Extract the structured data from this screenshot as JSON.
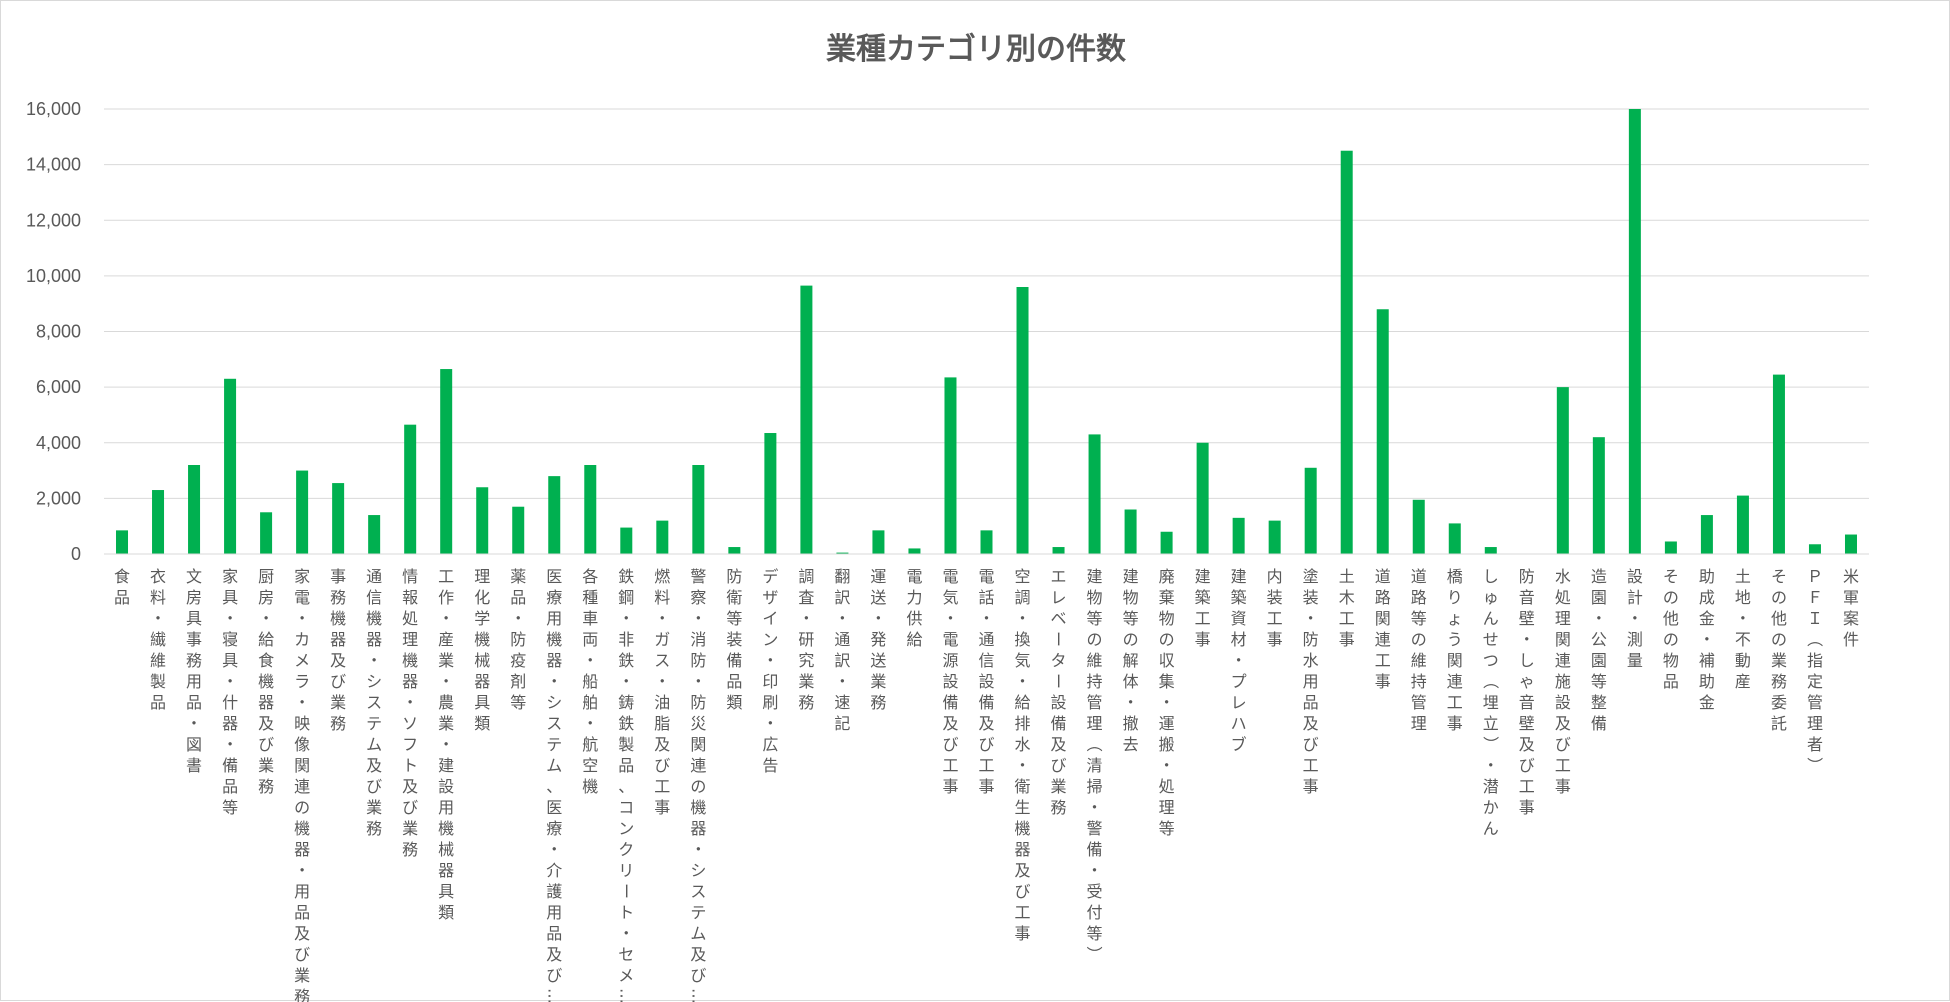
{
  "chart_data": {
    "type": "bar",
    "title": "業種カテゴリ別の件数",
    "xlabel": "",
    "ylabel": "",
    "ylim": [
      0,
      16000
    ],
    "y_ticks": [
      0,
      2000,
      4000,
      6000,
      8000,
      10000,
      12000,
      14000,
      16000
    ],
    "y_tick_labels": [
      "0",
      "2,000",
      "4,000",
      "6,000",
      "8,000",
      "10,000",
      "12,000",
      "14,000",
      "16,000"
    ],
    "grid": true,
    "legend": "none",
    "bar_color": "#00b050",
    "categories": [
      "食品",
      "衣料・繊維製品",
      "文房具事務用品・図書",
      "家具・寝具・什器・備品等",
      "厨房・給食機器及び業務",
      "家電・カメラ・映像関連の機器・用品及び業務",
      "事務機器及び業務",
      "通信機器・システム及び業務",
      "情報処理機器・ソフト及び業務",
      "工作・産業・農業・建設用機械器具類",
      "理化学機械器具類",
      "薬品・防疫剤等",
      "医療用機器・システム、医療・介護用品及び…",
      "各種車両・船舶・航空機",
      "鉄鋼・非鉄・鋳鉄製品、コンクリート・セメ…",
      "燃料・ガス・油脂及び工事",
      "警察・消防・防災関連の機器・システム及び…",
      "防衛等装備品類",
      "デザイン・印刷・広告",
      "調査・研究業務",
      "翻訳・通訳・速記",
      "運送・発送業務",
      "電力供給",
      "電気・電源設備及び工事",
      "電話・通信設備及び工事",
      "空調・換気・給排水・衛生機器及び工事",
      "エレベーター設備及び業務",
      "建物等の維持管理（清掃・警備・受付等）",
      "建物等の解体・撤去",
      "廃棄物の収集・運搬・処理等",
      "建築工事",
      "建築資材・プレハブ",
      "内装工事",
      "塗装・防水用品及び工事",
      "土木工事",
      "道路関連工事",
      "道路等の維持管理",
      "橋りょう関連工事",
      "しゅんせつ（埋立）・潜かん",
      "防音壁・しゃ音壁及び工事",
      "水処理関連施設及び工事",
      "造園・公園等整備",
      "設計・測量",
      "その他の物品",
      "助成金・補助金",
      "土地・不動産",
      "その他の業務委託",
      "ＰＦＩ（指定管理者）",
      "米軍案件"
    ],
    "values": [
      850,
      2300,
      3200,
      6300,
      1500,
      3000,
      2550,
      1400,
      4650,
      6650,
      2400,
      1700,
      2800,
      3200,
      950,
      1200,
      3200,
      250,
      4350,
      9650,
      50,
      850,
      200,
      6350,
      850,
      9600,
      250,
      4300,
      1600,
      800,
      4000,
      1300,
      1200,
      3100,
      14500,
      8800,
      1950,
      1100,
      250,
      0,
      6000,
      4200,
      16000,
      450,
      1400,
      2100,
      6450,
      350,
      700
    ]
  }
}
